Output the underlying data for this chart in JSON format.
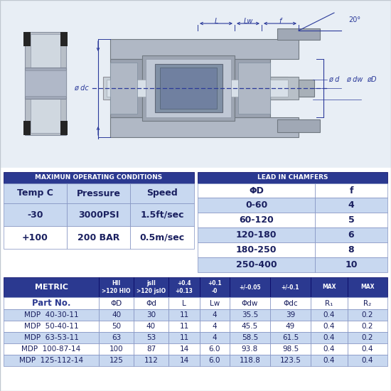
{
  "bg_color": "#ffffff",
  "header_blue": "#2b3990",
  "light_blue": "#b8c8e8",
  "row_light": "#c8d8f0",
  "row_white": "#ffffff",
  "text_dark": "#1a2060",
  "white": "#ffffff",
  "op_conditions_title": "MAXIMUN OPERATING CONDITIONS",
  "op_headers": [
    "Temp C",
    "Pressure",
    "Speed"
  ],
  "op_rows": [
    [
      "-30",
      "3000PSI",
      "1.5ft/sec"
    ],
    [
      "+100",
      "200 BAR",
      "0.5m/sec"
    ]
  ],
  "chamfer_title": "LEAD IN CHAMFERS",
  "chamfer_col1_header": "ΦD",
  "chamfer_col2_header": "f",
  "chamfer_rows": [
    [
      "0-60",
      "4"
    ],
    [
      "60-120",
      "5"
    ],
    [
      "120-180",
      "6"
    ],
    [
      "180-250",
      "8"
    ],
    [
      "250-400",
      "10"
    ]
  ],
  "metric_header": "METRIC",
  "metric_subheaders": [
    "HII\n>120 HIO",
    "jsII\n>120 jsIO",
    "+0.4\n+0.13",
    "+0.1\n-0",
    "+/-0.05",
    "+/-0.1",
    "MAX",
    "MAX"
  ],
  "metric_row2": [
    "Part No.",
    "ΦD",
    "Φd",
    "L",
    "Lw",
    "Φdw",
    "Φdc",
    "R₁",
    "R₂"
  ],
  "metric_data": [
    [
      "MDP  40-30-11",
      "40",
      "30",
      "11",
      "4",
      "35.5",
      "39",
      "0.4",
      "0.2"
    ],
    [
      "MDP  50-40-11",
      "50",
      "40",
      "11",
      "4",
      "45.5",
      "49",
      "0.4",
      "0.2"
    ],
    [
      "MDP  63-53-11",
      "63",
      "53",
      "11",
      "4",
      "58.5",
      "61.5",
      "0.4",
      "0.2"
    ],
    [
      "MDP  100-87-14",
      "100",
      "87",
      "14",
      "6.0",
      "93.8",
      "98.5",
      "0.4",
      "0.4"
    ],
    [
      "MDP  125-112-14",
      "125",
      "112",
      "14",
      "6.0",
      "118.8",
      "123.5",
      "0.4",
      "0.4"
    ]
  ],
  "dim_color": "#2b3a9a",
  "draw_bg": "#e8eef5"
}
